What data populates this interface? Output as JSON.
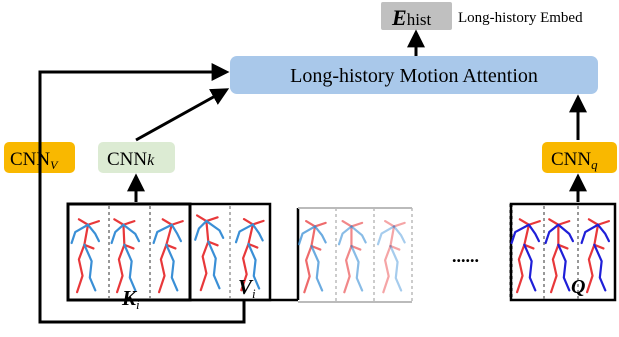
{
  "embed_box": {
    "symbol": "E",
    "subscript": "hist",
    "caption": "Long-history Embed",
    "fill": "#c0c0c0"
  },
  "attention_box": {
    "label": "Long-history Motion Attention",
    "fill": "#a9c8ea"
  },
  "cnn_v": {
    "base": "CNN",
    "sub": "V",
    "fill": "#f9b800"
  },
  "cnn_k": {
    "base": "CNN",
    "sub": "k",
    "fill": "#dcebd3"
  },
  "cnn_q": {
    "base": "CNN",
    "sub": "q",
    "fill": "#f9b800"
  },
  "key_label": {
    "symbol": "K",
    "subscript": "i"
  },
  "value_label": {
    "symbol": "V",
    "subscript": "i"
  },
  "query_label": {
    "symbol": "Q"
  },
  "ellipsis": "......",
  "colors": {
    "skeleton_red": "#e8383a",
    "skeleton_blue": "#3a8fd6",
    "skeleton_dark_blue": "#1f1fd8"
  }
}
